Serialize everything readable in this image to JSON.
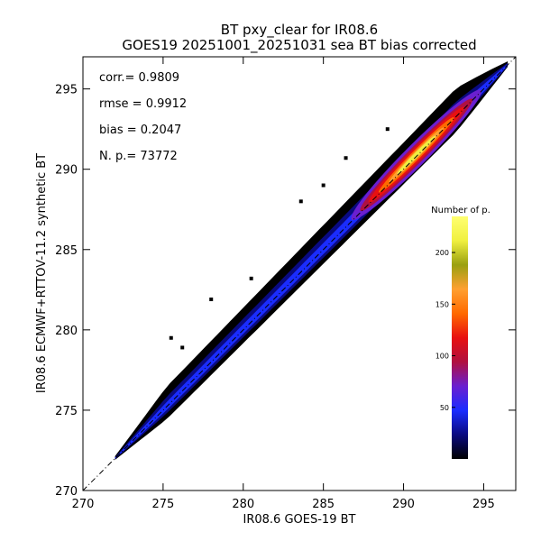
{
  "chart_data": {
    "type": "heatmap",
    "title": "BT pxy_clear for IR08.6",
    "subtitle": "GOES19 20251001_20251031 sea BT bias corrected",
    "xlabel": "IR08.6 GOES-19 BT",
    "ylabel": "IR08.6 ECMWF+RTTOV-11.2 synthetic BT",
    "xlim": [
      270,
      297
    ],
    "ylim": [
      270,
      297
    ],
    "x_ticks": [
      "270",
      "275",
      "280",
      "285",
      "290",
      "295"
    ],
    "y_ticks": [
      "270",
      "275",
      "280",
      "285",
      "290",
      "295"
    ],
    "grid": false,
    "reference_line": "1:1 dash-dot diagonal",
    "stats": [
      {
        "label": "corr.= ",
        "value": "0.9809"
      },
      {
        "label": "rmse = ",
        "value": "0.9912"
      },
      {
        "label": "bias = ",
        "value": "0.2047"
      },
      {
        "label": "N. p.=  ",
        "value": "73772"
      }
    ],
    "density": {
      "x_range": [
        272.0,
        296.5
      ],
      "core_start": 288.0,
      "peak_center": [
        290.8,
        290.9
      ],
      "peak_count": 230
    },
    "colorbar": {
      "label": "Number of p.",
      "range": [
        0,
        235
      ],
      "ticks": [
        "50",
        "100",
        "150",
        "200"
      ],
      "placement": "lower-right inside plot",
      "colors": [
        "#000000",
        "#0a0a80",
        "#1a2cff",
        "#6a1fd0",
        "#b01040",
        "#e81010",
        "#ff6a00",
        "#ffa030",
        "#9aa010",
        "#f0f040",
        "#ffff70"
      ]
    }
  }
}
